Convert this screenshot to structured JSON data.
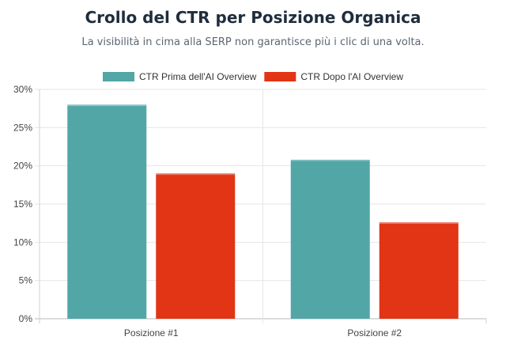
{
  "chart_data": {
    "type": "bar",
    "title": "Crollo del CTR per Posizione Organica",
    "subtitle": "La visibilità in cima alla SERP non garantisce più i clic di una volta.",
    "categories": [
      "Posizione #1",
      "Posizione #2"
    ],
    "series": [
      {
        "name": "CTR Prima dell'AI Overview",
        "values": [
          28,
          20.8
        ],
        "color": "#52a6a6"
      },
      {
        "name": "CTR Dopo l'AI Overview",
        "values": [
          19,
          12.6
        ],
        "color": "#e13515"
      }
    ],
    "ylim": [
      0,
      30
    ],
    "yticks": [
      "0%",
      "5%",
      "10%",
      "15%",
      "20%",
      "25%",
      "30%"
    ],
    "grid": true,
    "legend": "top"
  }
}
